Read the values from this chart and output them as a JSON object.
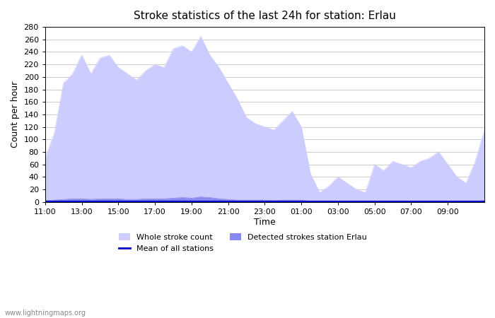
{
  "title": "Stroke statistics of the last 24h for station: Erlau",
  "xlabel": "Time",
  "ylabel": "Count per hour",
  "watermark": "www.lightningmaps.org",
  "x_ticks": [
    "11:00",
    "13:00",
    "15:00",
    "17:00",
    "19:00",
    "21:00",
    "23:00",
    "01:00",
    "03:00",
    "05:00",
    "07:00",
    "09:00"
  ],
  "ylim": [
    0,
    280
  ],
  "yticks": [
    0,
    20,
    40,
    60,
    80,
    100,
    120,
    140,
    160,
    180,
    200,
    220,
    240,
    260,
    280
  ],
  "whole_stroke_color": "#ccccff",
  "detected_stroke_color": "#8888ee",
  "mean_line_color": "#0000cc",
  "background_color": "#ffffff",
  "whole_stroke_x": [
    0,
    0.5,
    1,
    1.5,
    2,
    2.5,
    3,
    3.5,
    4,
    4.5,
    5,
    5.5,
    6,
    6.5,
    7,
    7.5,
    8,
    8.5,
    9,
    9.5,
    10,
    10.5,
    11,
    11.5,
    12,
    12.5,
    13,
    13.5,
    14,
    14.5,
    15,
    15.5,
    16,
    16.5,
    17,
    17.5,
    18,
    18.5,
    19,
    19.5,
    20,
    20.5,
    21,
    21.5,
    22,
    22.5,
    23,
    23.5,
    24
  ],
  "whole_stroke_y": [
    70,
    110,
    190,
    205,
    235,
    205,
    230,
    235,
    215,
    205,
    195,
    210,
    220,
    215,
    245,
    250,
    240,
    265,
    235,
    215,
    190,
    165,
    135,
    125,
    120,
    115,
    130,
    145,
    120,
    45,
    15,
    25,
    40,
    30,
    20,
    15,
    60,
    50,
    65,
    60,
    55,
    65,
    70,
    80,
    60,
    40,
    30,
    65,
    115
  ],
  "detected_stroke_x": [
    0,
    0.5,
    1,
    1.5,
    2,
    2.5,
    3,
    3.5,
    4,
    4.5,
    5,
    5.5,
    6,
    6.5,
    7,
    7.5,
    8,
    8.5,
    9,
    9.5,
    10,
    10.5,
    11,
    11.5,
    12,
    12.5,
    13,
    13.5,
    14,
    14.5,
    15,
    15.5,
    16,
    16.5,
    17,
    17.5,
    18,
    18.5,
    19,
    19.5,
    20,
    20.5,
    21,
    21.5,
    22,
    22.5,
    23,
    23.5,
    24
  ],
  "detected_stroke_y": [
    2,
    3,
    4,
    5,
    5,
    4,
    5,
    5,
    5,
    4,
    4,
    5,
    5,
    5,
    6,
    7,
    6,
    8,
    7,
    5,
    4,
    3,
    3,
    3,
    3,
    2,
    3,
    3,
    3,
    1,
    1,
    1,
    1,
    1,
    1,
    1,
    1,
    1,
    1,
    1,
    1,
    1,
    1,
    1,
    1,
    1,
    1,
    1,
    2
  ],
  "mean_line_x": [
    0,
    2,
    4,
    6,
    8,
    10,
    12,
    14,
    16,
    18,
    20,
    22,
    24
  ],
  "mean_line_y": [
    1,
    1,
    1,
    1,
    1,
    1,
    1,
    1,
    1,
    1,
    1,
    1,
    1
  ]
}
